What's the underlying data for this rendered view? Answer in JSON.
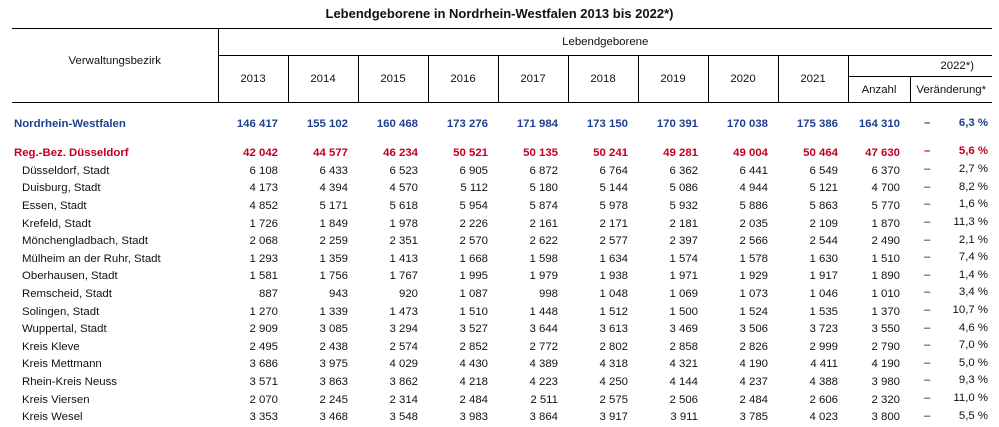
{
  "title": "Lebendgeborene in Nordrhein-Westfalen 2013 bis 2022*)",
  "header": {
    "bezirk": "Verwaltungsbezirk",
    "group": "Lebendgeborene",
    "years": [
      "2013",
      "2014",
      "2015",
      "2016",
      "2017",
      "2018",
      "2019",
      "2020",
      "2021"
    ],
    "year2022": "2022*)",
    "anzahl": "Anzahl",
    "veraenderung": "Veränderung*"
  },
  "rows": [
    {
      "name": "Nordrhein-Westfalen",
      "type": "nrw",
      "values": [
        "146 417",
        "155 102",
        "160 468",
        "173 276",
        "171 984",
        "173 150",
        "170 391",
        "170 038",
        "175 386",
        "164 310"
      ],
      "sign": "–",
      "change": "6,3 %"
    },
    {
      "name": "Reg.-Bez. Düsseldorf",
      "type": "reg",
      "values": [
        "42 042",
        "44 577",
        "46 234",
        "50 521",
        "50 135",
        "50 241",
        "49 281",
        "49 004",
        "50 464",
        "47 630"
      ],
      "sign": "–",
      "change": "5,6 %"
    },
    {
      "name": "Düsseldorf, Stadt",
      "type": "data",
      "values": [
        "6 108",
        "6 433",
        "6 523",
        "6 905",
        "6 872",
        "6 764",
        "6 362",
        "6 441",
        "6 549",
        "6 370"
      ],
      "sign": "–",
      "change": "2,7 %"
    },
    {
      "name": "Duisburg, Stadt",
      "type": "data",
      "values": [
        "4 173",
        "4 394",
        "4 570",
        "5 112",
        "5 180",
        "5 144",
        "5 086",
        "4 944",
        "5 121",
        "4 700"
      ],
      "sign": "–",
      "change": "8,2 %"
    },
    {
      "name": "Essen, Stadt",
      "type": "data",
      "values": [
        "4 852",
        "5 171",
        "5 618",
        "5 954",
        "5 874",
        "5 978",
        "5 932",
        "5 886",
        "5 863",
        "5 770"
      ],
      "sign": "–",
      "change": "1,6 %"
    },
    {
      "name": "Krefeld, Stadt",
      "type": "data",
      "values": [
        "1 726",
        "1 849",
        "1 978",
        "2 226",
        "2 161",
        "2 171",
        "2 181",
        "2 035",
        "2 109",
        "1 870"
      ],
      "sign": "–",
      "change": "11,3 %"
    },
    {
      "name": "Mönchengladbach, Stadt",
      "type": "data",
      "values": [
        "2 068",
        "2 259",
        "2 351",
        "2 570",
        "2 622",
        "2 577",
        "2 397",
        "2 566",
        "2 544",
        "2 490"
      ],
      "sign": "–",
      "change": "2,1 %"
    },
    {
      "name": "Mülheim an der Ruhr, Stadt",
      "type": "data",
      "values": [
        "1 293",
        "1 359",
        "1 413",
        "1 668",
        "1 598",
        "1 634",
        "1 574",
        "1 578",
        "1 630",
        "1 510"
      ],
      "sign": "–",
      "change": "7,4 %"
    },
    {
      "name": "Oberhausen, Stadt",
      "type": "data",
      "values": [
        "1 581",
        "1 756",
        "1 767",
        "1 995",
        "1 979",
        "1 938",
        "1 971",
        "1 929",
        "1 917",
        "1 890"
      ],
      "sign": "–",
      "change": "1,4 %"
    },
    {
      "name": "Remscheid, Stadt",
      "type": "data",
      "values": [
        "887",
        "943",
        "920",
        "1 087",
        "998",
        "1 048",
        "1 069",
        "1 073",
        "1 046",
        "1 010"
      ],
      "sign": "–",
      "change": "3,4 %"
    },
    {
      "name": "Solingen, Stadt",
      "type": "data",
      "values": [
        "1 270",
        "1 339",
        "1 473",
        "1 510",
        "1 448",
        "1 512",
        "1 500",
        "1 524",
        "1 535",
        "1 370"
      ],
      "sign": "–",
      "change": "10,7 %"
    },
    {
      "name": "Wuppertal, Stadt",
      "type": "data",
      "values": [
        "2 909",
        "3 085",
        "3 294",
        "3 527",
        "3 644",
        "3 613",
        "3 469",
        "3 506",
        "3 723",
        "3 550"
      ],
      "sign": "–",
      "change": "4,6 %"
    },
    {
      "name": "Kreis Kleve",
      "type": "data",
      "values": [
        "2 495",
        "2 438",
        "2 574",
        "2 852",
        "2 772",
        "2 802",
        "2 858",
        "2 826",
        "2 999",
        "2 790"
      ],
      "sign": "–",
      "change": "7,0 %"
    },
    {
      "name": "Kreis Mettmann",
      "type": "data",
      "values": [
        "3 686",
        "3 975",
        "4 029",
        "4 430",
        "4 389",
        "4 318",
        "4 321",
        "4 190",
        "4 411",
        "4 190"
      ],
      "sign": "–",
      "change": "5,0 %"
    },
    {
      "name": "Rhein-Kreis Neuss",
      "type": "data",
      "values": [
        "3 571",
        "3 863",
        "3 862",
        "4 218",
        "4 223",
        "4 250",
        "4 144",
        "4 237",
        "4 388",
        "3 980"
      ],
      "sign": "–",
      "change": "9,3 %"
    },
    {
      "name": "Kreis Viersen",
      "type": "data",
      "values": [
        "2 070",
        "2 245",
        "2 314",
        "2 484",
        "2 511",
        "2 575",
        "2 506",
        "2 484",
        "2 606",
        "2 320"
      ],
      "sign": "–",
      "change": "11,0 %"
    },
    {
      "name": "Kreis Wesel",
      "type": "data",
      "values": [
        "3 353",
        "3 468",
        "3 548",
        "3 983",
        "3 864",
        "3 917",
        "3 911",
        "3 785",
        "4 023",
        "3 800"
      ],
      "sign": "–",
      "change": "5,5 %"
    }
  ]
}
